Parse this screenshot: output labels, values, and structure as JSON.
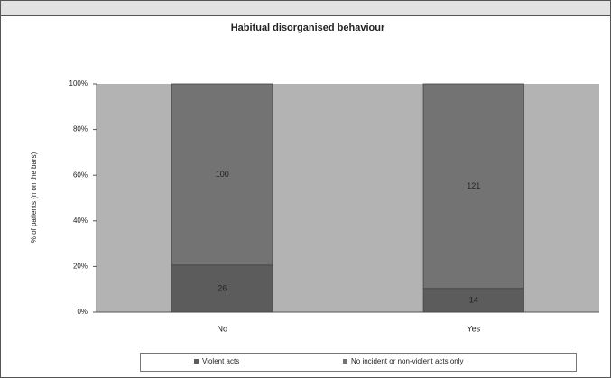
{
  "chart_data": {
    "type": "bar",
    "stacking": "percent",
    "title": "Habitual disorganised behaviour",
    "y_label": "% of patients (n on the bars)",
    "categories": [
      "No",
      "Yes"
    ],
    "series": [
      {
        "name": "Violent acts",
        "color": "#5c5c5c",
        "values": [
          26,
          14
        ]
      },
      {
        "name": "No incident or non-violent acts only",
        "color": "#737373",
        "values": [
          100,
          121
        ]
      }
    ],
    "ylim": [
      0,
      100
    ],
    "yticks": [
      {
        "value": 0,
        "label": "0%"
      },
      {
        "value": 20,
        "label": "20%"
      },
      {
        "value": 40,
        "label": "40%"
      },
      {
        "value": 60,
        "label": "60%"
      },
      {
        "value": 80,
        "label": "80%"
      },
      {
        "value": 100,
        "label": "100%"
      }
    ],
    "grid": false,
    "plot_background": "#b3b3b3",
    "legend": "bottom"
  }
}
